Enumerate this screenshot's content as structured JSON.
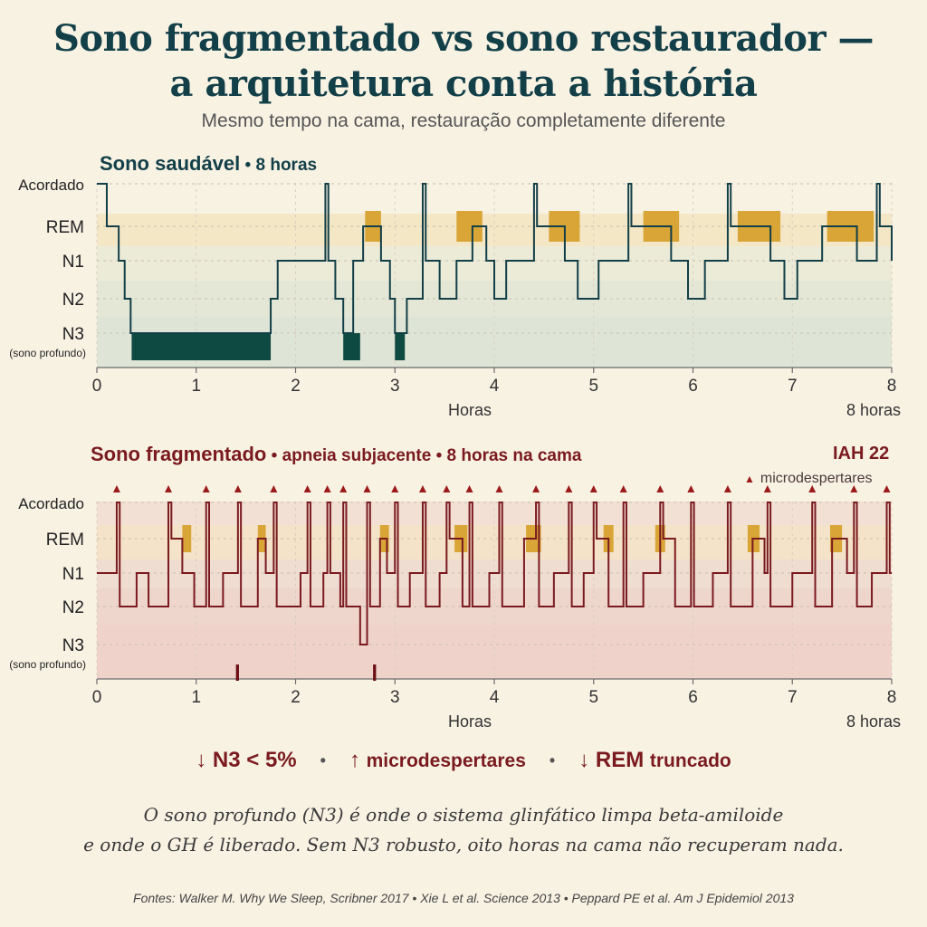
{
  "title_line1": "Sono fragmentado vs sono restaurador —",
  "title_line2": "a arquitetura conta a história",
  "subtitle": "Mesmo tempo na cama, restauração completamente diferente",
  "panels": {
    "healthy": {
      "title": "Sono saudável",
      "sep": " • ",
      "hours": "8 horas"
    },
    "fragmented": {
      "title": "Sono fragmentado",
      "sep1": " • ",
      "part2": "apneia subjacente",
      "sep2": " • ",
      "part3": "8 horas na cama",
      "iah": "IAH 22",
      "micro_legend": "microdespertares"
    }
  },
  "summary": {
    "item1_arrow": "↓",
    "item1": "N3 < 5%",
    "item2_arrow": "↑",
    "item2": "microdespertares",
    "item3_arrow": "↓",
    "item3a": "REM",
    "item3b": "truncado",
    "sep": "•"
  },
  "note_line1": "O sono profundo (N3) é onde o sistema glinfático limpa beta-amiloide",
  "note_line2": "e onde o GH é liberado. Sem N3 robusto, oito horas na cama não recuperam nada.",
  "sources": "Fontes: Walker M. Why We Sleep, Scribner 2017  •  Xie L et al. Science 2013  •  Peppard PE et al. Am J Epidemiol 2013",
  "colors": {
    "healthy_line": "#123f48",
    "fragmented_line": "#7a1a1f",
    "rem_block": "#d9a537",
    "n3_block_healthy": "#0e4a42",
    "micro_marker": "#9b1b1b"
  },
  "chart_data": [
    {
      "type": "line",
      "name": "healthy",
      "title": "Sono saudável • 8 horas",
      "xlabel": "Horas",
      "x_end_label": "8 horas",
      "xlim": [
        0,
        8
      ],
      "xticks": [
        0,
        1,
        2,
        3,
        4,
        5,
        6,
        7,
        8
      ],
      "stages": [
        "Acordado",
        "REM",
        "N1",
        "N2",
        "N3"
      ],
      "stage_sublabel": "(sono profundo)",
      "hypnogram": [
        [
          0,
          "Acordado"
        ],
        [
          0.1,
          "REM"
        ],
        [
          0.22,
          "N1"
        ],
        [
          0.28,
          "N2"
        ],
        [
          0.34,
          "N3"
        ],
        [
          1.75,
          "N2"
        ],
        [
          1.82,
          "N1"
        ],
        [
          2.3,
          "Acordado"
        ],
        [
          2.33,
          "N1"
        ],
        [
          2.4,
          "N2"
        ],
        [
          2.48,
          "N3"
        ],
        [
          2.58,
          "N1"
        ],
        [
          2.68,
          "REM"
        ],
        [
          2.86,
          "N1"
        ],
        [
          2.95,
          "N2"
        ],
        [
          3.0,
          "N3"
        ],
        [
          3.12,
          "N2"
        ],
        [
          3.28,
          "Acordado"
        ],
        [
          3.31,
          "N1"
        ],
        [
          3.45,
          "N2"
        ],
        [
          3.62,
          "N1"
        ],
        [
          3.78,
          "REM"
        ],
        [
          3.92,
          "N1"
        ],
        [
          4.0,
          "N2"
        ],
        [
          4.12,
          "N1"
        ],
        [
          4.4,
          "Acordado"
        ],
        [
          4.43,
          "REM"
        ],
        [
          4.71,
          "N1"
        ],
        [
          4.84,
          "N2"
        ],
        [
          5.05,
          "N1"
        ],
        [
          5.35,
          "Acordado"
        ],
        [
          5.38,
          "REM"
        ],
        [
          5.78,
          "N1"
        ],
        [
          5.95,
          "N2"
        ],
        [
          6.12,
          "N1"
        ],
        [
          6.35,
          "Acordado"
        ],
        [
          6.38,
          "REM"
        ],
        [
          6.78,
          "N1"
        ],
        [
          6.92,
          "N2"
        ],
        [
          7.05,
          "N1"
        ],
        [
          7.3,
          "REM"
        ],
        [
          7.65,
          "N1"
        ],
        [
          7.85,
          "Acordado"
        ],
        [
          7.88,
          "REM"
        ],
        [
          8.0,
          "N1"
        ]
      ],
      "rem_blocks": [
        [
          2.7,
          2.86
        ],
        [
          3.62,
          3.88
        ],
        [
          4.55,
          4.86
        ],
        [
          5.5,
          5.86
        ],
        [
          6.45,
          6.88
        ],
        [
          7.35,
          7.82
        ]
      ],
      "n3_blocks": [
        [
          0.35,
          1.75
        ],
        [
          2.48,
          2.65
        ],
        [
          3.0,
          3.1
        ]
      ]
    },
    {
      "type": "line",
      "name": "fragmented",
      "title": "Sono fragmentado • apneia subjacente • 8 horas na cama",
      "annotation": "IAH 22",
      "xlabel": "Horas",
      "x_end_label": "8 horas",
      "xlim": [
        0,
        8
      ],
      "xticks": [
        0,
        1,
        2,
        3,
        4,
        5,
        6,
        7,
        8
      ],
      "stages": [
        "Acordado",
        "REM",
        "N1",
        "N2",
        "N3"
      ],
      "stage_sublabel": "(sono profundo)",
      "microarousals": [
        0.2,
        0.72,
        1.1,
        1.42,
        1.78,
        2.12,
        2.32,
        2.48,
        2.72,
        3.0,
        3.28,
        3.52,
        3.75,
        4.05,
        4.42,
        4.75,
        5.0,
        5.3,
        5.67,
        5.98,
        6.35,
        6.75,
        7.2,
        7.62,
        7.95
      ],
      "hypnogram": [
        [
          0,
          "N1"
        ],
        [
          0.2,
          "Acordado"
        ],
        [
          0.23,
          "N2"
        ],
        [
          0.4,
          "N1"
        ],
        [
          0.52,
          "N2"
        ],
        [
          0.72,
          "Acordado"
        ],
        [
          0.75,
          "REM"
        ],
        [
          0.86,
          "N1"
        ],
        [
          0.98,
          "N2"
        ],
        [
          1.1,
          "Acordado"
        ],
        [
          1.13,
          "N2"
        ],
        [
          1.27,
          "N1"
        ],
        [
          1.42,
          "Acordado"
        ],
        [
          1.45,
          "N2"
        ],
        [
          1.62,
          "REM"
        ],
        [
          1.7,
          "N1"
        ],
        [
          1.78,
          "Acordado"
        ],
        [
          1.81,
          "N2"
        ],
        [
          2.05,
          "N1"
        ],
        [
          2.12,
          "Acordado"
        ],
        [
          2.15,
          "N2"
        ],
        [
          2.28,
          "N1"
        ],
        [
          2.32,
          "Acordado"
        ],
        [
          2.35,
          "N1"
        ],
        [
          2.45,
          "N2"
        ],
        [
          2.48,
          "Acordado"
        ],
        [
          2.51,
          "N2"
        ],
        [
          2.65,
          "N3"
        ],
        [
          2.72,
          "Acordado"
        ],
        [
          2.75,
          "N2"
        ],
        [
          2.85,
          "REM"
        ],
        [
          2.92,
          "N1"
        ],
        [
          3.0,
          "Acordado"
        ],
        [
          3.03,
          "N2"
        ],
        [
          3.15,
          "N1"
        ],
        [
          3.28,
          "Acordado"
        ],
        [
          3.31,
          "N2"
        ],
        [
          3.45,
          "N1"
        ],
        [
          3.52,
          "Acordado"
        ],
        [
          3.55,
          "REM"
        ],
        [
          3.68,
          "N2"
        ],
        [
          3.75,
          "Acordado"
        ],
        [
          3.78,
          "N2"
        ],
        [
          3.95,
          "N1"
        ],
        [
          4.05,
          "Acordado"
        ],
        [
          4.08,
          "N2"
        ],
        [
          4.3,
          "REM"
        ],
        [
          4.42,
          "Acordado"
        ],
        [
          4.45,
          "N2"
        ],
        [
          4.6,
          "N1"
        ],
        [
          4.75,
          "Acordado"
        ],
        [
          4.78,
          "N2"
        ],
        [
          4.9,
          "N1"
        ],
        [
          5.0,
          "Acordado"
        ],
        [
          5.03,
          "REM"
        ],
        [
          5.15,
          "N2"
        ],
        [
          5.3,
          "Acordado"
        ],
        [
          5.33,
          "N2"
        ],
        [
          5.5,
          "N1"
        ],
        [
          5.67,
          "Acordado"
        ],
        [
          5.7,
          "REM"
        ],
        [
          5.82,
          "N2"
        ],
        [
          5.98,
          "Acordado"
        ],
        [
          6.01,
          "N2"
        ],
        [
          6.2,
          "N1"
        ],
        [
          6.35,
          "Acordado"
        ],
        [
          6.38,
          "N2"
        ],
        [
          6.6,
          "REM"
        ],
        [
          6.72,
          "N1"
        ],
        [
          6.75,
          "Acordado"
        ],
        [
          6.78,
          "N2"
        ],
        [
          7.0,
          "N1"
        ],
        [
          7.2,
          "Acordado"
        ],
        [
          7.23,
          "N2"
        ],
        [
          7.4,
          "REM"
        ],
        [
          7.55,
          "N1"
        ],
        [
          7.62,
          "Acordado"
        ],
        [
          7.65,
          "N2"
        ],
        [
          7.8,
          "N1"
        ],
        [
          7.95,
          "Acordado"
        ],
        [
          7.98,
          "N1"
        ],
        [
          8.0,
          "N1"
        ]
      ],
      "rem_blocks": [
        [
          0.86,
          0.95
        ],
        [
          1.62,
          1.7
        ],
        [
          2.85,
          2.94
        ],
        [
          3.6,
          3.73
        ],
        [
          4.32,
          4.47
        ],
        [
          5.1,
          5.2
        ],
        [
          5.62,
          5.72
        ],
        [
          6.55,
          6.67
        ],
        [
          7.38,
          7.5
        ]
      ],
      "n3_blocks": [
        [
          1.4,
          1.43
        ],
        [
          2.78,
          2.81
        ]
      ]
    }
  ]
}
